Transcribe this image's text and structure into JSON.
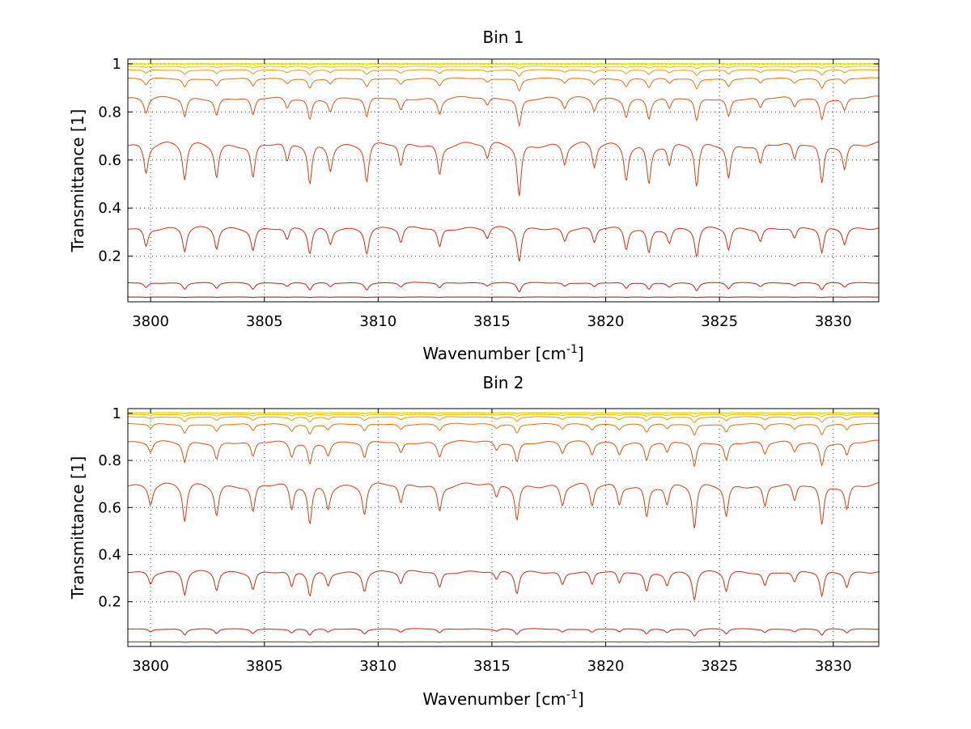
{
  "chart_data": [
    {
      "type": "line",
      "title": "Bin 1",
      "xlabel": "Wavenumber [cm",
      "xlabel_sup": "-1",
      "xlabel_end": "]",
      "ylabel": "Transmittance [1]",
      "xlim": [
        3799,
        3832
      ],
      "ylim": [
        0.01,
        1.02
      ],
      "xticks": [
        3800,
        3805,
        3810,
        3815,
        3820,
        3825,
        3830
      ],
      "yticks": [
        0.2,
        0.4,
        0.6,
        0.8,
        1
      ],
      "ytick_labels": [
        "0.2",
        "0.4",
        "0.6",
        "0.8",
        "1"
      ],
      "grid": true,
      "absorption_lines": [
        {
          "x": 3799.8,
          "depth": 0.7
        },
        {
          "x": 3801.5,
          "depth": 0.9
        },
        {
          "x": 3802.9,
          "depth": 0.8
        },
        {
          "x": 3804.5,
          "depth": 0.85
        },
        {
          "x": 3806.0,
          "depth": 0.5
        },
        {
          "x": 3807.0,
          "depth": 1.0
        },
        {
          "x": 3807.9,
          "depth": 0.6
        },
        {
          "x": 3809.5,
          "depth": 0.95
        },
        {
          "x": 3811.0,
          "depth": 0.6
        },
        {
          "x": 3812.7,
          "depth": 0.75
        },
        {
          "x": 3814.8,
          "depth": 0.4
        },
        {
          "x": 3816.2,
          "depth": 1.3
        },
        {
          "x": 3818.2,
          "depth": 0.5
        },
        {
          "x": 3819.5,
          "depth": 0.6
        },
        {
          "x": 3820.9,
          "depth": 0.85
        },
        {
          "x": 3821.9,
          "depth": 0.95
        },
        {
          "x": 3822.8,
          "depth": 0.55
        },
        {
          "x": 3824.0,
          "depth": 1.1
        },
        {
          "x": 3825.4,
          "depth": 0.85
        },
        {
          "x": 3826.8,
          "depth": 0.5
        },
        {
          "x": 3828.3,
          "depth": 0.45
        },
        {
          "x": 3829.5,
          "depth": 1.0
        },
        {
          "x": 3830.5,
          "depth": 0.6
        }
      ],
      "series": [
        {
          "baseline": 0.03,
          "scale": 0.002,
          "color": "#8b1a1a"
        },
        {
          "baseline": 0.09,
          "scale": 0.03,
          "color": "#c81e14"
        },
        {
          "baseline": 0.32,
          "scale": 0.11,
          "color": "#cf2a12"
        },
        {
          "baseline": 0.67,
          "scale": 0.17,
          "color": "#d83c10"
        },
        {
          "baseline": 0.86,
          "scale": 0.09,
          "color": "#e0520e"
        },
        {
          "baseline": 0.94,
          "scale": 0.04,
          "color": "#e8700c"
        },
        {
          "baseline": 0.975,
          "scale": 0.02,
          "color": "#f0960a"
        },
        {
          "baseline": 0.99,
          "scale": 0.008,
          "color": "#f5bb06"
        },
        {
          "baseline": 0.998,
          "scale": 0.003,
          "color": "#f7e000"
        },
        {
          "baseline": 1.002,
          "scale": 0.002,
          "color": "#d4e800"
        }
      ]
    },
    {
      "type": "line",
      "title": "Bin 2",
      "xlabel": "Wavenumber [cm",
      "xlabel_sup": "-1",
      "xlabel_end": "]",
      "ylabel": "Transmittance [1]",
      "xlim": [
        3799,
        3832
      ],
      "ylim": [
        0.01,
        1.02
      ],
      "xticks": [
        3800,
        3805,
        3810,
        3815,
        3820,
        3825,
        3830
      ],
      "yticks": [
        0.2,
        0.4,
        0.6,
        0.8,
        1
      ],
      "ytick_labels": [
        "0.2",
        "0.4",
        "0.6",
        "0.8",
        "1"
      ],
      "grid": true,
      "absorption_lines": [
        {
          "x": 3800.0,
          "depth": 0.5
        },
        {
          "x": 3801.5,
          "depth": 1.0
        },
        {
          "x": 3802.9,
          "depth": 0.8
        },
        {
          "x": 3804.5,
          "depth": 0.75
        },
        {
          "x": 3806.2,
          "depth": 0.7
        },
        {
          "x": 3807.0,
          "depth": 1.05
        },
        {
          "x": 3807.8,
          "depth": 0.6
        },
        {
          "x": 3809.4,
          "depth": 0.8
        },
        {
          "x": 3811.0,
          "depth": 0.55
        },
        {
          "x": 3812.7,
          "depth": 0.7
        },
        {
          "x": 3815.2,
          "depth": 0.4
        },
        {
          "x": 3816.1,
          "depth": 0.95
        },
        {
          "x": 3818.1,
          "depth": 0.55
        },
        {
          "x": 3819.4,
          "depth": 0.6
        },
        {
          "x": 3820.6,
          "depth": 0.55
        },
        {
          "x": 3821.8,
          "depth": 0.85
        },
        {
          "x": 3822.7,
          "depth": 0.55
        },
        {
          "x": 3823.9,
          "depth": 1.2
        },
        {
          "x": 3825.3,
          "depth": 0.85
        },
        {
          "x": 3827.0,
          "depth": 0.6
        },
        {
          "x": 3828.3,
          "depth": 0.5
        },
        {
          "x": 3829.5,
          "depth": 1.1
        },
        {
          "x": 3830.6,
          "depth": 0.65
        }
      ],
      "series": [
        {
          "baseline": 0.03,
          "scale": 0.002,
          "color": "#8b1a1a"
        },
        {
          "baseline": 0.085,
          "scale": 0.025,
          "color": "#c81e14"
        },
        {
          "baseline": 0.33,
          "scale": 0.1,
          "color": "#cf2a12"
        },
        {
          "baseline": 0.7,
          "scale": 0.16,
          "color": "#d83c10"
        },
        {
          "baseline": 0.88,
          "scale": 0.09,
          "color": "#e0520e"
        },
        {
          "baseline": 0.955,
          "scale": 0.04,
          "color": "#e8700c"
        },
        {
          "baseline": 0.985,
          "scale": 0.02,
          "color": "#f0960a"
        },
        {
          "baseline": 0.995,
          "scale": 0.008,
          "color": "#f5bb06"
        },
        {
          "baseline": 1.0,
          "scale": 0.003,
          "color": "#f7e000"
        },
        {
          "baseline": 1.003,
          "scale": 0.002,
          "color": "#d4e800"
        }
      ]
    }
  ]
}
